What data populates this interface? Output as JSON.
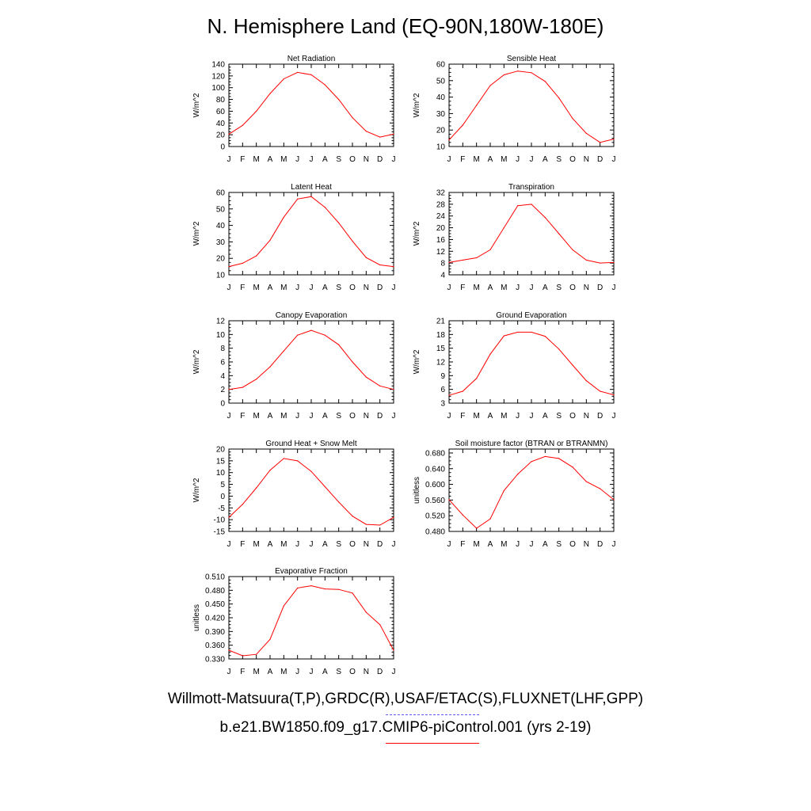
{
  "title": "N. Hemisphere Land (EQ-90N,180W-180E)",
  "footer": {
    "observations": "Willmott-Matsuura(T,P),GRDC(R),USAF/ETAC(S),FLUXNET(LHF,GPP)",
    "observations_color": "#5a5aff",
    "model": "b.e21.BW1850.f09_g17.CMIP6-piControl.001 (yrs 2-19)",
    "model_color": "#ff0000"
  },
  "chart_data": [
    {
      "type": "line",
      "title": "Net Radiation",
      "ylabel": "W/m^2",
      "categories": [
        "J",
        "F",
        "M",
        "A",
        "M",
        "J",
        "J",
        "A",
        "S",
        "O",
        "N",
        "D",
        "J"
      ],
      "yticks": [
        "0",
        "20",
        "40",
        "60",
        "80",
        "100",
        "120",
        "140"
      ],
      "ylim": [
        0,
        140
      ],
      "series": [
        {
          "color": "#ff0000",
          "values": [
            21,
            36,
            60,
            90,
            115,
            126,
            122,
            105,
            80,
            49,
            26,
            16,
            21
          ]
        }
      ]
    },
    {
      "type": "line",
      "title": "Sensible Heat",
      "ylabel": "W/m^2",
      "categories": [
        "J",
        "F",
        "M",
        "A",
        "M",
        "J",
        "J",
        "A",
        "S",
        "O",
        "N",
        "D",
        "J"
      ],
      "yticks": [
        "10",
        "20",
        "30",
        "40",
        "50",
        "60"
      ],
      "ylim": [
        10,
        60
      ],
      "series": [
        {
          "color": "#ff0000",
          "values": [
            14,
            23,
            35,
            47,
            53.5,
            55.8,
            54.8,
            49.5,
            39.5,
            27,
            18,
            12.5,
            14.5
          ]
        }
      ]
    },
    {
      "type": "line",
      "title": "Latent Heat",
      "ylabel": "W/m^2",
      "categories": [
        "J",
        "F",
        "M",
        "A",
        "M",
        "J",
        "J",
        "A",
        "S",
        "O",
        "N",
        "D",
        "J"
      ],
      "yticks": [
        "10",
        "20",
        "30",
        "40",
        "50",
        "60"
      ],
      "ylim": [
        10,
        60
      ],
      "series": [
        {
          "color": "#ff0000",
          "values": [
            15,
            17,
            21.5,
            31,
            45,
            56,
            57.5,
            51,
            41.5,
            30.5,
            20.5,
            16,
            15
          ]
        }
      ]
    },
    {
      "type": "line",
      "title": "Transpiration",
      "ylabel": "W/m^2",
      "categories": [
        "J",
        "F",
        "M",
        "A",
        "M",
        "J",
        "J",
        "A",
        "S",
        "O",
        "N",
        "D",
        "J"
      ],
      "yticks": [
        "4",
        "8",
        "12",
        "16",
        "20",
        "24",
        "28",
        "32"
      ],
      "ylim": [
        4,
        32
      ],
      "series": [
        {
          "color": "#ff0000",
          "values": [
            8.2,
            9,
            9.8,
            12.5,
            20,
            27.5,
            28,
            23.5,
            18,
            12.5,
            9,
            8,
            8.2
          ]
        }
      ]
    },
    {
      "type": "line",
      "title": "Canopy Evaporation",
      "ylabel": "W/m^2",
      "categories": [
        "J",
        "F",
        "M",
        "A",
        "M",
        "J",
        "J",
        "A",
        "S",
        "O",
        "N",
        "D",
        "J"
      ],
      "yticks": [
        "0",
        "2",
        "4",
        "6",
        "8",
        "10",
        "12"
      ],
      "ylim": [
        0,
        12
      ],
      "series": [
        {
          "color": "#ff0000",
          "values": [
            2,
            2.3,
            3.5,
            5.3,
            7.6,
            9.9,
            10.6,
            9.9,
            8.5,
            6,
            3.8,
            2.5,
            2
          ]
        }
      ]
    },
    {
      "type": "line",
      "title": "Ground Evaporation",
      "ylabel": "W/m^2",
      "categories": [
        "J",
        "F",
        "M",
        "A",
        "M",
        "J",
        "J",
        "A",
        "S",
        "O",
        "N",
        "D",
        "J"
      ],
      "yticks": [
        "3",
        "6",
        "9",
        "12",
        "15",
        "18",
        "21"
      ],
      "ylim": [
        3,
        21
      ],
      "series": [
        {
          "color": "#ff0000",
          "values": [
            4.7,
            5.6,
            8.4,
            13.7,
            17.7,
            18.5,
            18.5,
            17.6,
            14.8,
            11.3,
            7.9,
            5.6,
            4.8
          ]
        }
      ]
    },
    {
      "type": "line",
      "title": "Ground Heat + Snow Melt",
      "ylabel": "W/m^2",
      "categories": [
        "J",
        "F",
        "M",
        "A",
        "M",
        "J",
        "J",
        "A",
        "S",
        "O",
        "N",
        "D",
        "J"
      ],
      "yticks": [
        "-15",
        "-10",
        "-5",
        "0",
        "5",
        "10",
        "15",
        "20"
      ],
      "ylim": [
        -15,
        20
      ],
      "series": [
        {
          "color": "#ff0000",
          "values": [
            -9,
            -3.5,
            3.5,
            11,
            16,
            15,
            10.5,
            4,
            -2.5,
            -8.5,
            -12,
            -12.3,
            -9
          ]
        }
      ]
    },
    {
      "type": "line",
      "title": "Soil moisture factor (BTRAN or BTRANMN)",
      "ylabel": "unitless",
      "categories": [
        "J",
        "F",
        "M",
        "A",
        "M",
        "J",
        "J",
        "A",
        "S",
        "O",
        "N",
        "D",
        "J"
      ],
      "yticks": [
        "0.480",
        "0.520",
        "0.560",
        "0.600",
        "0.640",
        "0.680"
      ],
      "ylim": [
        0.48,
        0.69
      ],
      "series": [
        {
          "color": "#ff0000",
          "values": [
            0.561,
            0.522,
            0.488,
            0.512,
            0.584,
            0.626,
            0.658,
            0.671,
            0.666,
            0.644,
            0.607,
            0.589,
            0.561
          ]
        }
      ]
    },
    {
      "type": "line",
      "title": "Evaporative Fraction",
      "ylabel": "unitless",
      "categories": [
        "J",
        "F",
        "M",
        "A",
        "M",
        "J",
        "J",
        "A",
        "S",
        "O",
        "N",
        "D",
        "J"
      ],
      "yticks": [
        "0.330",
        "0.360",
        "0.390",
        "0.420",
        "0.450",
        "0.480",
        "0.510"
      ],
      "ylim": [
        0.33,
        0.51
      ],
      "series": [
        {
          "color": "#ff0000",
          "values": [
            0.349,
            0.337,
            0.34,
            0.373,
            0.446,
            0.485,
            0.49,
            0.483,
            0.482,
            0.474,
            0.432,
            0.405,
            0.349
          ]
        }
      ]
    }
  ]
}
